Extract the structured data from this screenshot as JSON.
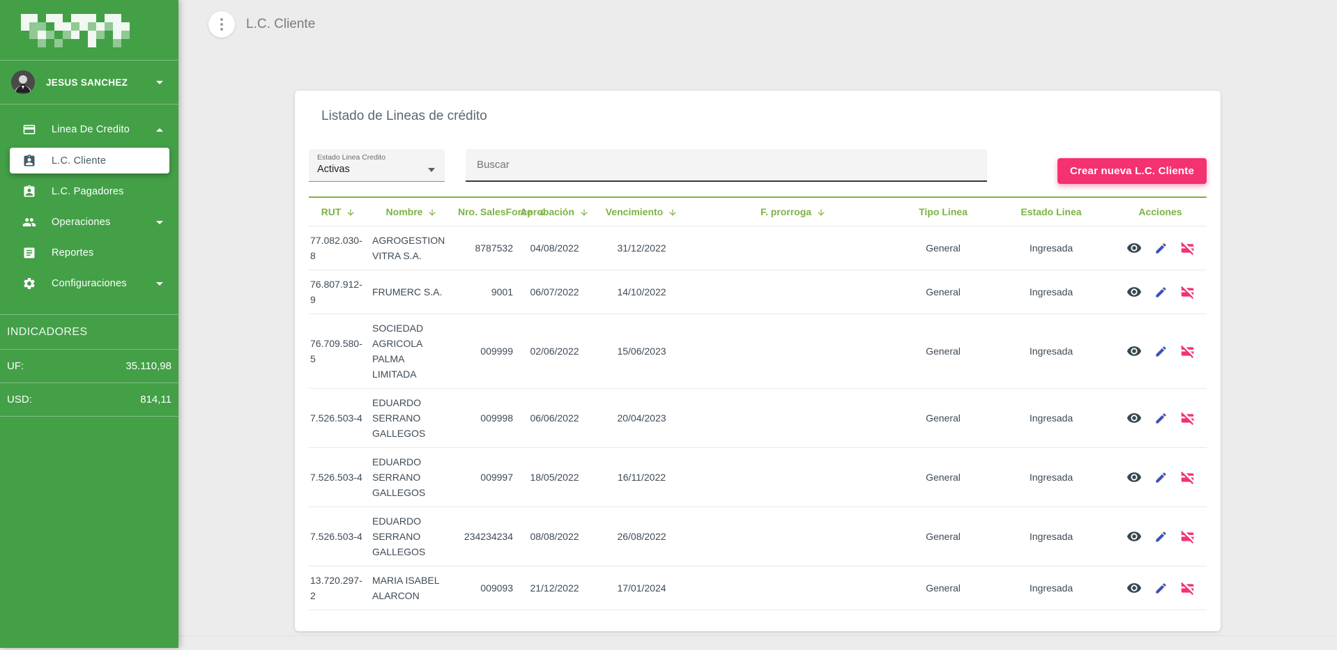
{
  "sidebar": {
    "user_name": "JESUS SANCHEZ",
    "nav": {
      "linea_de_credito": "Linea De Credito",
      "lc_cliente": "L.C. Cliente",
      "lc_pagadores": "L.C. Pagadores",
      "operaciones": "Operaciones",
      "reportes": "Reportes",
      "configuraciones": "Configuraciones"
    },
    "indicators_title": "INDICADORES",
    "indicators": [
      {
        "label": "UF:",
        "value": "35.110,98"
      },
      {
        "label": "USD:",
        "value": "814,11"
      }
    ]
  },
  "header": {
    "title": "L.C. Cliente"
  },
  "panel": {
    "title": "Listado de Lineas de crédito",
    "estado_select": {
      "label": "Estado Linea Credito",
      "value": "Activas"
    },
    "search_placeholder": "Buscar",
    "create_button": "Crear nueva L.C. Cliente"
  },
  "table": {
    "columns": [
      {
        "label": "RUT",
        "sortable": true
      },
      {
        "label": "Nombre",
        "sortable": true
      },
      {
        "label": "Nro. SalesForce",
        "sortable": true
      },
      {
        "label": "Aprobación",
        "sortable": true
      },
      {
        "label": "Vencimiento",
        "sortable": true
      },
      {
        "label": "F. prorroga",
        "sortable": true
      },
      {
        "label": "Tipo Linea",
        "sortable": false
      },
      {
        "label": "Estado Linea",
        "sortable": false
      },
      {
        "label": "Acciones",
        "sortable": false
      }
    ],
    "rows": [
      {
        "rut": "77.082.030-8",
        "nombre": "AGROGESTION VITRA S.A.",
        "salesforce": "8787532",
        "aprobacion": "04/08/2022",
        "vencimiento": "31/12/2022",
        "prorroga": "",
        "tipo": "General",
        "estado": "Ingresada"
      },
      {
        "rut": "76.807.912-9",
        "nombre": "FRUMERC S.A.",
        "salesforce": "9001",
        "aprobacion": "06/07/2022",
        "vencimiento": "14/10/2022",
        "prorroga": "",
        "tipo": "General",
        "estado": "Ingresada"
      },
      {
        "rut": "76.709.580-5",
        "nombre": "SOCIEDAD AGRICOLA PALMA LIMITADA",
        "salesforce": "009999",
        "aprobacion": "02/06/2022",
        "vencimiento": "15/06/2023",
        "prorroga": "",
        "tipo": "General",
        "estado": "Ingresada"
      },
      {
        "rut": "7.526.503-4",
        "nombre": "EDUARDO SERRANO GALLEGOS",
        "salesforce": "009998",
        "aprobacion": "06/06/2022",
        "vencimiento": "20/04/2023",
        "prorroga": "",
        "tipo": "General",
        "estado": "Ingresada"
      },
      {
        "rut": "7.526.503-4",
        "nombre": "EDUARDO SERRANO GALLEGOS",
        "salesforce": "009997",
        "aprobacion": "18/05/2022",
        "vencimiento": "16/11/2022",
        "prorroga": "",
        "tipo": "General",
        "estado": "Ingresada"
      },
      {
        "rut": "7.526.503-4",
        "nombre": "EDUARDO SERRANO GALLEGOS",
        "salesforce": "234234234",
        "aprobacion": "08/08/2022",
        "vencimiento": "26/08/2022",
        "prorroga": "",
        "tipo": "General",
        "estado": "Ingresada"
      },
      {
        "rut": "13.720.297-2",
        "nombre": "MARIA ISABEL ALARCON",
        "salesforce": "009093",
        "aprobacion": "21/12/2022",
        "vencimiento": "17/01/2024",
        "prorroga": "",
        "tipo": "General",
        "estado": "Ingresada"
      }
    ]
  },
  "colors": {
    "sidebar_green": "#43a047",
    "accent_green": "#7cb342",
    "pink": "#f4326f",
    "indigo": "#3f51b5",
    "dark_slate": "#37474f"
  }
}
